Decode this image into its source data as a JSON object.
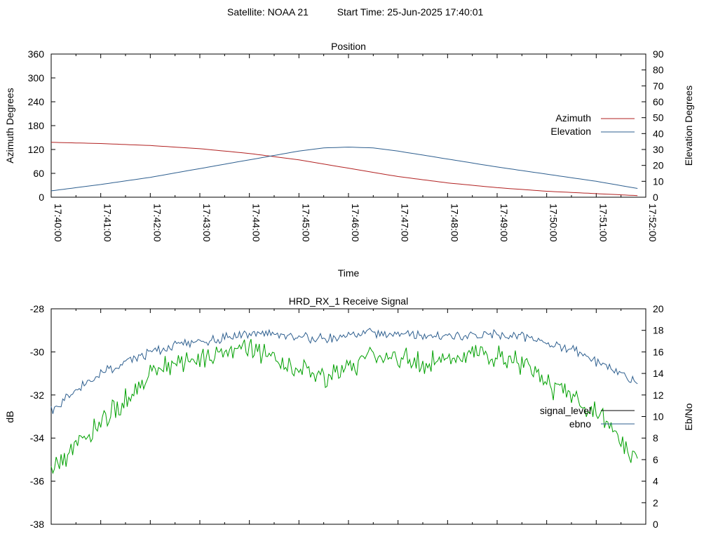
{
  "header": {
    "satellite": "Satellite: NOAA 21",
    "start_time": "Start Time: 25-Jun-2025 17:40:01"
  },
  "chart_data": [
    {
      "type": "line",
      "title": "Position",
      "xlabel": "Time",
      "ylabel": "Azimuth Degrees",
      "y2label": "Elevation Degrees",
      "xlim": [
        "17:40:00",
        "17:52:00"
      ],
      "ylim": [
        0,
        360
      ],
      "y2lim": [
        0,
        90
      ],
      "xticks": [
        "17:40:00",
        "17:41:00",
        "17:42:00",
        "17:43:00",
        "17:44:00",
        "17:45:00",
        "17:46:00",
        "17:47:00",
        "17:48:00",
        "17:49:00",
        "17:50:00",
        "17:51:00",
        "17:52:00"
      ],
      "yticks": [
        "0",
        "60",
        "120",
        "180",
        "240",
        "300",
        "360"
      ],
      "y2ticks": [
        "0",
        "10",
        "20",
        "30",
        "40",
        "50",
        "60",
        "70",
        "80",
        "90"
      ],
      "legend_position": "right",
      "grid": false,
      "series": [
        {
          "name": "Azimuth",
          "axis": "y",
          "color": "#b22222",
          "x": [
            "17:40:00",
            "17:41:00",
            "17:42:00",
            "17:43:00",
            "17:44:00",
            "17:45:00",
            "17:46:00",
            "17:47:00",
            "17:48:00",
            "17:49:00",
            "17:50:00",
            "17:51:00",
            "17:51:50"
          ],
          "y": [
            138,
            135,
            130,
            122,
            110,
            94,
            73,
            52,
            36,
            24,
            15,
            9,
            4
          ]
        },
        {
          "name": "Elevation",
          "axis": "y2",
          "color": "#2e5f8f",
          "x": [
            "17:40:00",
            "17:41:00",
            "17:42:00",
            "17:43:00",
            "17:44:00",
            "17:45:00",
            "17:45:30",
            "17:46:00",
            "17:46:30",
            "17:47:00",
            "17:48:00",
            "17:49:00",
            "17:50:00",
            "17:51:00",
            "17:51:50"
          ],
          "y": [
            4,
            8,
            12.5,
            18,
            23.5,
            29,
            31,
            31.5,
            31,
            29,
            24,
            19,
            14.5,
            10,
            5.5
          ]
        }
      ]
    },
    {
      "type": "line",
      "title": "HRD_RX_1 Receive Signal",
      "ylabel": "dB",
      "y2label": "Eb/No",
      "xlim": [
        "17:40:00",
        "17:52:00"
      ],
      "ylim": [
        -38,
        -28
      ],
      "y2lim": [
        0,
        20
      ],
      "yticks": [
        "-38",
        "-36",
        "-34",
        "-32",
        "-30",
        "-28"
      ],
      "y2ticks": [
        "0",
        "2",
        "4",
        "6",
        "8",
        "10",
        "12",
        "14",
        "16",
        "18",
        "20"
      ],
      "legend_position": "right",
      "grid": false,
      "series": [
        {
          "name": "signal_level",
          "axis": "y",
          "color": "#00a000",
          "legend_color": "#000000",
          "x": [
            "17:40:00",
            "17:40:30",
            "17:41:00",
            "17:41:30",
            "17:42:00",
            "17:42:30",
            "17:43:00",
            "17:43:30",
            "17:44:00",
            "17:44:30",
            "17:45:00",
            "17:45:30",
            "17:46:00",
            "17:46:30",
            "17:47:00",
            "17:47:30",
            "17:48:00",
            "17:48:30",
            "17:49:00",
            "17:49:30",
            "17:50:00",
            "17:50:30",
            "17:51:00",
            "17:51:30",
            "17:51:50"
          ],
          "y": [
            -35.5,
            -34.2,
            -33.2,
            -32.2,
            -31.1,
            -30.5,
            -30.4,
            -30.1,
            -29.7,
            -30.2,
            -30.8,
            -31.2,
            -30.8,
            -30.2,
            -30.3,
            -30.5,
            -30.3,
            -30.1,
            -30.2,
            -30.6,
            -31.5,
            -32,
            -32.9,
            -34,
            -35
          ]
        },
        {
          "name": "ebno",
          "axis": "y2",
          "color": "#2e5f8f",
          "x": [
            "17:40:00",
            "17:40:30",
            "17:41:00",
            "17:41:30",
            "17:42:00",
            "17:42:30",
            "17:43:00",
            "17:43:30",
            "17:44:00",
            "17:44:30",
            "17:45:00",
            "17:45:30",
            "17:46:00",
            "17:46:30",
            "17:47:00",
            "17:47:30",
            "17:48:00",
            "17:48:30",
            "17:49:00",
            "17:49:30",
            "17:50:00",
            "17:50:30",
            "17:51:00",
            "17:51:30",
            "17:51:50"
          ],
          "y": [
            10.5,
            12.6,
            14,
            15.1,
            16,
            16.6,
            17,
            17.3,
            17.8,
            17.7,
            17.4,
            17.2,
            17.5,
            17.7,
            17.6,
            17.5,
            17.5,
            17.5,
            17.6,
            17.4,
            16.9,
            16.2,
            15.1,
            14,
            13
          ]
        }
      ]
    }
  ]
}
